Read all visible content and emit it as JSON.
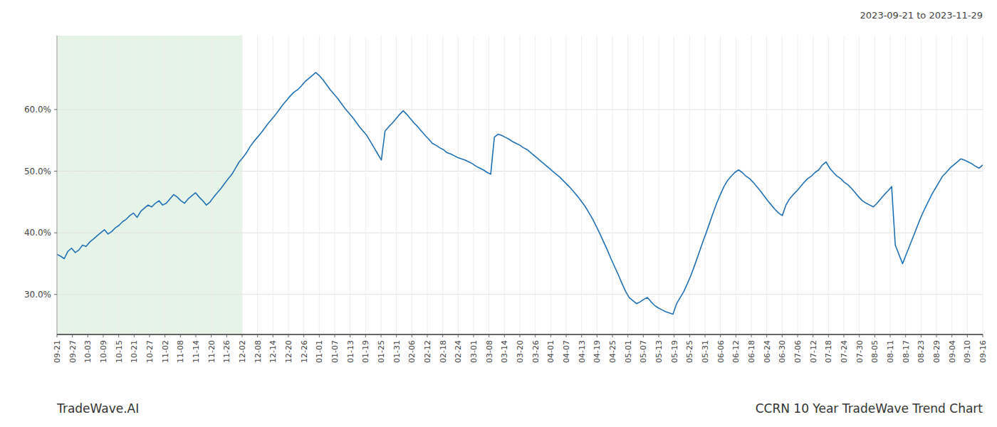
{
  "chart_data": {
    "type": "line",
    "title": "CCRN 10 Year TradeWave Trend Chart",
    "subtitle": "2023-09-21 to 2023-11-29",
    "annotations": [
      "TradeWave.AI"
    ],
    "color": "#2171b5",
    "grid": true,
    "shade": {
      "xlim": [
        0,
        50.8
      ],
      "color": "#c8e6c9"
    },
    "xlim": [
      0,
      254
    ],
    "xticks": [
      {
        "value": 0,
        "label": "09-21"
      },
      {
        "value": 4.233333333333333,
        "label": "09-27"
      },
      {
        "value": 8.466666666666667,
        "label": "10-03"
      },
      {
        "value": 12.7,
        "label": "10-09"
      },
      {
        "value": 16.933333333333334,
        "label": "10-15"
      },
      {
        "value": 21.166666666666668,
        "label": "10-21"
      },
      {
        "value": 25.4,
        "label": "10-27"
      },
      {
        "value": 29.633333333333333,
        "label": "11-02"
      },
      {
        "value": 33.86666666666667,
        "label": "11-08"
      },
      {
        "value": 38.1,
        "label": "11-14"
      },
      {
        "value": 42.333333333333336,
        "label": "11-20"
      },
      {
        "value": 46.56666666666667,
        "label": "11-26"
      },
      {
        "value": 50.8,
        "label": "12-02"
      },
      {
        "value": 55.03333333333333,
        "label": "12-08"
      },
      {
        "value": 59.266666666666666,
        "label": "12-14"
      },
      {
        "value": 63.5,
        "label": "12-20"
      },
      {
        "value": 67.73333333333333,
        "label": "12-26"
      },
      {
        "value": 71.96666666666667,
        "label": "01-01"
      },
      {
        "value": 76.2,
        "label": "01-07"
      },
      {
        "value": 80.43333333333334,
        "label": "01-13"
      },
      {
        "value": 84.66666666666667,
        "label": "01-19"
      },
      {
        "value": 88.9,
        "label": "01-25"
      },
      {
        "value": 93.13333333333334,
        "label": "01-31"
      },
      {
        "value": 97.36666666666666,
        "label": "02-06"
      },
      {
        "value": 101.6,
        "label": "02-12"
      },
      {
        "value": 105.83333333333333,
        "label": "02-18"
      },
      {
        "value": 110.06666666666666,
        "label": "02-24"
      },
      {
        "value": 114.3,
        "label": "03-01"
      },
      {
        "value": 118.53333333333333,
        "label": "03-08"
      },
      {
        "value": 122.76666666666667,
        "label": "03-14"
      },
      {
        "value": 127,
        "label": "03-20"
      },
      {
        "value": 131.23333333333332,
        "label": "03-26"
      },
      {
        "value": 135.46666666666667,
        "label": "04-01"
      },
      {
        "value": 139.7,
        "label": "04-07"
      },
      {
        "value": 143.93333333333334,
        "label": "04-13"
      },
      {
        "value": 148.16666666666666,
        "label": "04-19"
      },
      {
        "value": 152.4,
        "label": "04-25"
      },
      {
        "value": 156.63333333333333,
        "label": "05-01"
      },
      {
        "value": 160.86666666666667,
        "label": "05-07"
      },
      {
        "value": 165.1,
        "label": "05-13"
      },
      {
        "value": 169.33333333333334,
        "label": "05-19"
      },
      {
        "value": 173.56666666666666,
        "label": "05-25"
      },
      {
        "value": 177.8,
        "label": "05-31"
      },
      {
        "value": 182.03333333333333,
        "label": "06-06"
      },
      {
        "value": 186.26666666666668,
        "label": "06-12"
      },
      {
        "value": 190.5,
        "label": "06-18"
      },
      {
        "value": 194.73333333333332,
        "label": "06-24"
      },
      {
        "value": 198.96666666666667,
        "label": "06-30"
      },
      {
        "value": 203.2,
        "label": "07-06"
      },
      {
        "value": 207.43333333333334,
        "label": "07-12"
      },
      {
        "value": 211.66666666666666,
        "label": "07-18"
      },
      {
        "value": 215.9,
        "label": "07-24"
      },
      {
        "value": 220.13333333333333,
        "label": "07-30"
      },
      {
        "value": 224.36666666666667,
        "label": "08-05"
      },
      {
        "value": 228.6,
        "label": "08-11"
      },
      {
        "value": 232.83333333333334,
        "label": "08-17"
      },
      {
        "value": 237.06666666666666,
        "label": "08-23"
      },
      {
        "value": 241.3,
        "label": "08-29"
      },
      {
        "value": 245.53333333333333,
        "label": "09-04"
      },
      {
        "value": 249.76666666666668,
        "label": "09-10"
      },
      {
        "value": 254,
        "label": "09-16"
      }
    ],
    "ylim": [
      0.235,
      0.72
    ],
    "yticks": [
      {
        "value": 0.3,
        "label": "30.0%"
      },
      {
        "value": 0.4,
        "label": "40.0%"
      },
      {
        "value": 0.5,
        "label": "50.0%"
      },
      {
        "value": 0.6,
        "label": "60.0%"
      }
    ],
    "values": [
      0.365,
      0.362,
      0.358,
      0.37,
      0.375,
      0.368,
      0.372,
      0.38,
      0.378,
      0.385,
      0.39,
      0.395,
      0.4,
      0.405,
      0.398,
      0.402,
      0.408,
      0.412,
      0.418,
      0.422,
      0.428,
      0.432,
      0.425,
      0.435,
      0.44,
      0.445,
      0.442,
      0.448,
      0.452,
      0.445,
      0.448,
      0.455,
      0.462,
      0.458,
      0.452,
      0.448,
      0.455,
      0.46,
      0.465,
      0.458,
      0.452,
      0.445,
      0.45,
      0.458,
      0.465,
      0.472,
      0.48,
      0.488,
      0.495,
      0.505,
      0.515,
      0.522,
      0.53,
      0.54,
      0.548,
      0.555,
      0.562,
      0.57,
      0.578,
      0.585,
      0.592,
      0.6,
      0.608,
      0.615,
      0.622,
      0.628,
      0.632,
      0.638,
      0.645,
      0.65,
      0.655,
      0.66,
      0.655,
      0.648,
      0.64,
      0.632,
      0.625,
      0.618,
      0.61,
      0.602,
      0.595,
      0.588,
      0.58,
      0.572,
      0.565,
      0.558,
      0.548,
      0.538,
      0.528,
      0.518,
      0.565,
      0.572,
      0.578,
      0.585,
      0.592,
      0.598,
      0.592,
      0.585,
      0.578,
      0.572,
      0.565,
      0.558,
      0.552,
      0.545,
      0.542,
      0.538,
      0.535,
      0.53,
      0.528,
      0.525,
      0.522,
      0.52,
      0.518,
      0.515,
      0.512,
      0.508,
      0.505,
      0.502,
      0.498,
      0.495,
      0.555,
      0.56,
      0.558,
      0.555,
      0.552,
      0.548,
      0.545,
      0.542,
      0.538,
      0.535,
      0.53,
      0.525,
      0.52,
      0.515,
      0.51,
      0.505,
      0.5,
      0.495,
      0.49,
      0.484,
      0.478,
      0.472,
      0.465,
      0.458,
      0.45,
      0.442,
      0.432,
      0.422,
      0.41,
      0.398,
      0.385,
      0.372,
      0.358,
      0.345,
      0.332,
      0.318,
      0.305,
      0.295,
      0.29,
      0.285,
      0.288,
      0.292,
      0.295,
      0.288,
      0.282,
      0.278,
      0.275,
      0.272,
      0.27,
      0.268,
      0.285,
      0.295,
      0.305,
      0.318,
      0.332,
      0.348,
      0.365,
      0.382,
      0.398,
      0.415,
      0.432,
      0.448,
      0.462,
      0.475,
      0.485,
      0.492,
      0.498,
      0.502,
      0.498,
      0.492,
      0.488,
      0.482,
      0.475,
      0.468,
      0.46,
      0.452,
      0.445,
      0.438,
      0.432,
      0.428,
      0.445,
      0.455,
      0.462,
      0.468,
      0.475,
      0.482,
      0.488,
      0.492,
      0.498,
      0.502,
      0.51,
      0.515,
      0.505,
      0.498,
      0.492,
      0.488,
      0.482,
      0.478,
      0.472,
      0.465,
      0.458,
      0.452,
      0.448,
      0.445,
      0.442,
      0.448,
      0.455,
      0.462,
      0.468,
      0.475,
      0.38,
      0.365,
      0.35,
      0.365,
      0.38,
      0.395,
      0.41,
      0.425,
      0.438,
      0.45,
      0.462,
      0.472,
      0.482,
      0.492,
      0.498,
      0.505,
      0.51,
      0.515,
      0.52,
      0.518,
      0.515,
      0.512,
      0.508,
      0.505,
      0.51
    ]
  }
}
